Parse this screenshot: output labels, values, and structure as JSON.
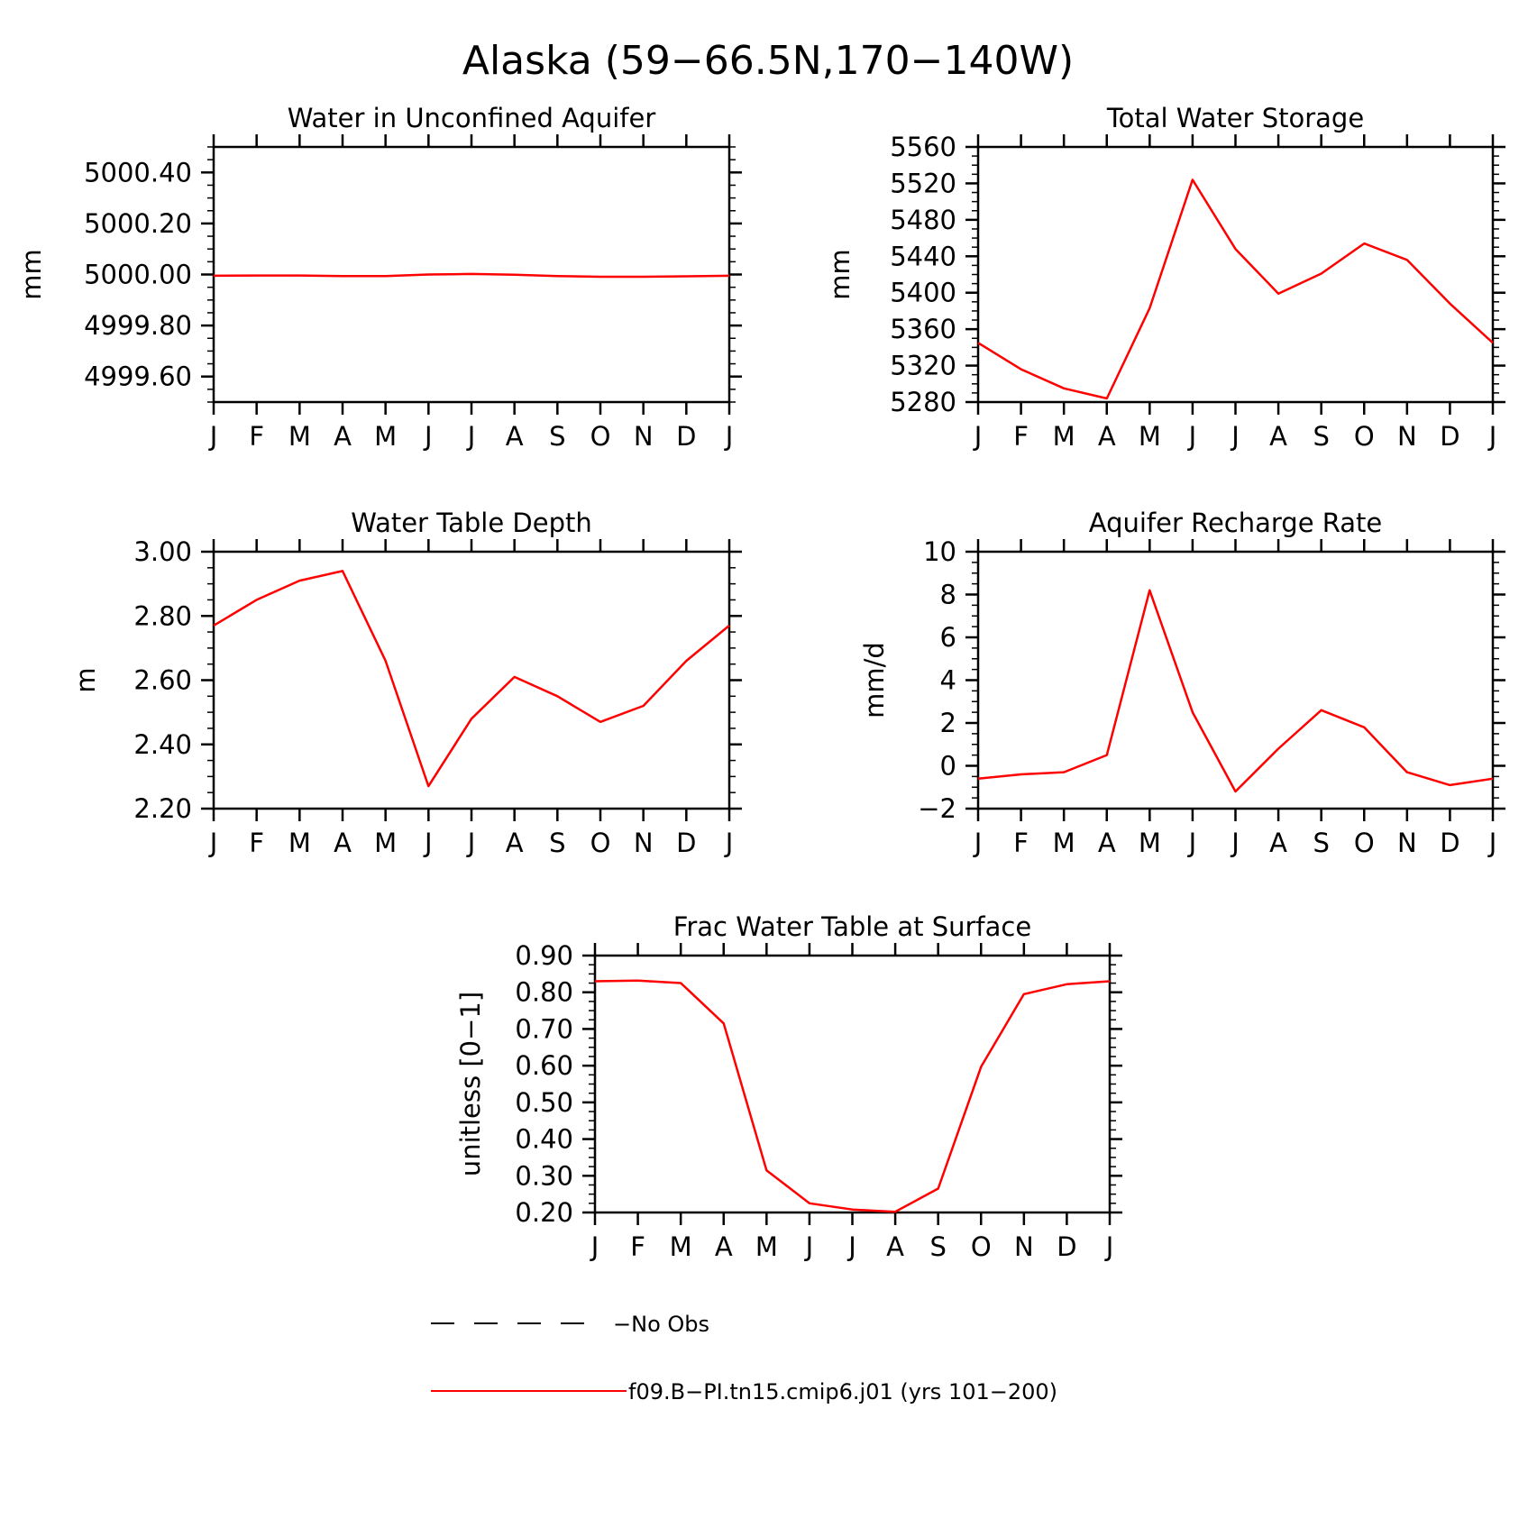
{
  "figure": {
    "title": "Alaska (59−66.5N,170−140W)"
  },
  "legend": {
    "entries": [
      {
        "label": "−No Obs",
        "style": "dashed",
        "color": "#000000"
      },
      {
        "label": "f09.B−PI.tn15.cmip6.j01 (yrs 101−200)",
        "style": "solid",
        "color": "#ff0000"
      }
    ]
  },
  "chart_data": [
    {
      "type": "line",
      "title": "Water in Unconfined Aquifer",
      "xlabel": "",
      "ylabel": "mm",
      "categories": [
        "J",
        "F",
        "M",
        "A",
        "M",
        "J",
        "J",
        "A",
        "S",
        "O",
        "N",
        "D",
        "J"
      ],
      "ylim": [
        4999.5,
        5000.5
      ],
      "yticks": [
        4999.6,
        4999.8,
        5000.0,
        5000.2,
        5000.4
      ],
      "ytick_labels": [
        "4999.60",
        "4999.80",
        "5000.00",
        "5000.20",
        "5000.40"
      ],
      "y_minor_step": 0.05,
      "series": [
        {
          "color": "#ff0000",
          "values": [
            4999.995,
            4999.996,
            4999.996,
            4999.994,
            4999.994,
            5000.0,
            5000.002,
            4999.999,
            4999.994,
            4999.991,
            4999.991,
            4999.993,
            4999.995
          ]
        }
      ]
    },
    {
      "type": "line",
      "title": "Total Water Storage",
      "xlabel": "",
      "ylabel": "mm",
      "categories": [
        "J",
        "F",
        "M",
        "A",
        "M",
        "J",
        "J",
        "A",
        "S",
        "O",
        "N",
        "D",
        "J"
      ],
      "ylim": [
        5280,
        5560
      ],
      "yticks": [
        5280,
        5320,
        5360,
        5400,
        5440,
        5480,
        5520,
        5560
      ],
      "ytick_labels": [
        "5280",
        "5320",
        "5360",
        "5400",
        "5440",
        "5480",
        "5520",
        "5560"
      ],
      "y_minor_step": 10,
      "series": [
        {
          "color": "#ff0000",
          "values": [
            5345,
            5316,
            5295,
            5284,
            5383,
            5524,
            5448,
            5399,
            5421,
            5454,
            5436,
            5388,
            5345
          ]
        }
      ]
    },
    {
      "type": "line",
      "title": "Water Table Depth",
      "xlabel": "",
      "ylabel": "m",
      "categories": [
        "J",
        "F",
        "M",
        "A",
        "M",
        "J",
        "J",
        "A",
        "S",
        "O",
        "N",
        "D",
        "J"
      ],
      "ylim": [
        2.2,
        3.0
      ],
      "yticks": [
        2.2,
        2.4,
        2.6,
        2.8,
        3.0
      ],
      "ytick_labels": [
        "2.20",
        "2.40",
        "2.60",
        "2.80",
        "3.00"
      ],
      "y_minor_step": 0.05,
      "series": [
        {
          "color": "#ff0000",
          "values": [
            2.77,
            2.85,
            2.91,
            2.94,
            2.66,
            2.27,
            2.48,
            2.61,
            2.55,
            2.47,
            2.52,
            2.66,
            2.77
          ]
        }
      ]
    },
    {
      "type": "line",
      "title": "Aquifer Recharge Rate",
      "xlabel": "",
      "ylabel": "mm/d",
      "categories": [
        "J",
        "F",
        "M",
        "A",
        "M",
        "J",
        "J",
        "A",
        "S",
        "O",
        "N",
        "D",
        "J"
      ],
      "ylim": [
        -2,
        10
      ],
      "yticks": [
        -2,
        0,
        2,
        4,
        6,
        8,
        10
      ],
      "ytick_labels": [
        "−2",
        "0",
        "2",
        "4",
        "6",
        "8",
        "10"
      ],
      "y_minor_step": 0.5,
      "series": [
        {
          "color": "#ff0000",
          "values": [
            -0.6,
            -0.4,
            -0.3,
            0.5,
            8.2,
            2.5,
            -1.2,
            0.8,
            2.6,
            1.8,
            -0.3,
            -0.9,
            -0.6
          ]
        }
      ]
    },
    {
      "type": "line",
      "title": "Frac Water Table at Surface",
      "xlabel": "",
      "ylabel": "unitless [0−1]",
      "categories": [
        "J",
        "F",
        "M",
        "A",
        "M",
        "J",
        "J",
        "A",
        "S",
        "O",
        "N",
        "D",
        "J"
      ],
      "ylim": [
        0.2,
        0.9
      ],
      "yticks": [
        0.2,
        0.3,
        0.4,
        0.5,
        0.6,
        0.7,
        0.8,
        0.9
      ],
      "ytick_labels": [
        "0.20",
        "0.30",
        "0.40",
        "0.50",
        "0.60",
        "0.70",
        "0.80",
        "0.90"
      ],
      "y_minor_step": 0.025,
      "series": [
        {
          "color": "#ff0000",
          "values": [
            0.83,
            0.832,
            0.825,
            0.715,
            0.315,
            0.225,
            0.208,
            0.202,
            0.265,
            0.597,
            0.795,
            0.822,
            0.83
          ]
        }
      ]
    }
  ]
}
